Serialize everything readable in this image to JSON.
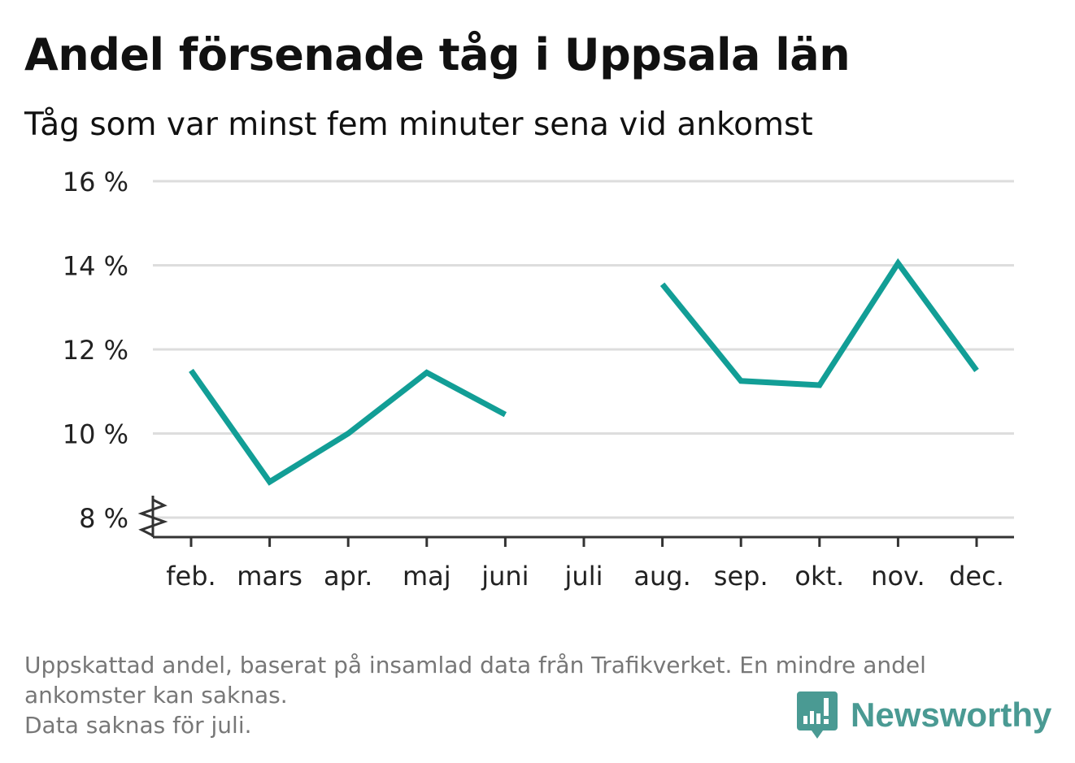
{
  "header": {
    "title": "Andel försenade tåg i Uppsala län",
    "subtitle": "Tåg som var minst fem minuter sena vid ankomst"
  },
  "chart_data": {
    "type": "line",
    "title": "Andel försenade tåg i Uppsala län",
    "subtitle": "Tåg som var minst fem minuter sena vid ankomst",
    "categories": [
      "feb.",
      "mars",
      "apr.",
      "maj",
      "juni",
      "juli",
      "aug.",
      "sep.",
      "okt.",
      "nov.",
      "dec."
    ],
    "series": [
      {
        "values": [
          11.5,
          8.85,
          10.0,
          11.45,
          10.45,
          null,
          13.55,
          11.25,
          11.15,
          14.05,
          11.5
        ],
        "color": "#129e96"
      }
    ],
    "y_ticks": [
      8,
      10,
      12,
      14,
      16
    ],
    "y_tick_labels": [
      "8 %",
      "10 %",
      "12 %",
      "14 %",
      "16 %"
    ],
    "ylim": [
      8,
      16
    ],
    "y_axis_break": true,
    "grid": true,
    "xlabel": "",
    "ylabel": ""
  },
  "footnote": {
    "line1": "Uppskattad andel, baserat på insamlad data från Trafikverket. En mindre andel",
    "line2": "ankomster kan saknas.",
    "line3": "Data saknas för juli."
  },
  "brand": {
    "name": "Newsworthy",
    "icon": "newsworthy-logo-icon",
    "color": "#4a9a93"
  },
  "colors": {
    "line": "#129e96",
    "grid": "#dddddd",
    "axis": "#333333",
    "footnote": "#777777"
  }
}
